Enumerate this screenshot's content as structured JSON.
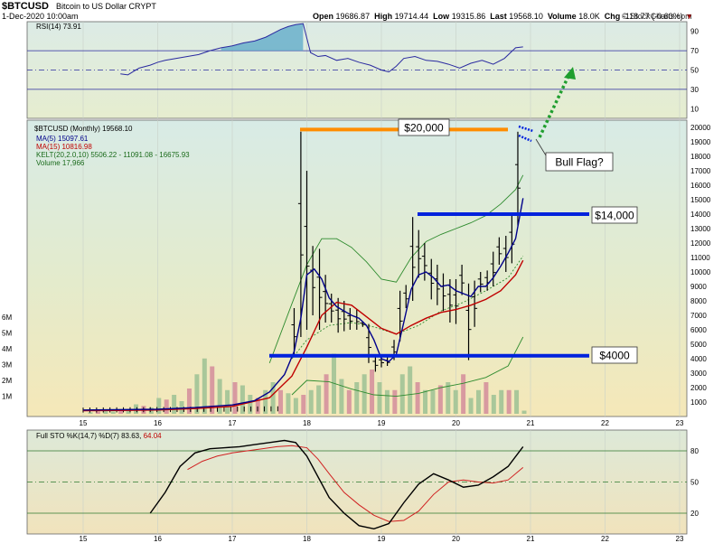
{
  "header": {
    "symbol": "$BTCUSD",
    "description": "Bitcoin to US Dollar  CRYPT",
    "date": "1-Dec-2020 10:00am",
    "watermark": "© StockCharts.com",
    "open_label": "Open",
    "open": "19686.87",
    "high_label": "High",
    "high": "19714.44",
    "low_label": "Low",
    "low": "19315.86",
    "last_label": "Last",
    "last": "19568.10",
    "volume_label": "Volume",
    "volume": "18.0K",
    "chg_label": "Chg",
    "chg": "-118.77 (-0.60%)"
  },
  "chart_data": [
    {
      "type": "line",
      "name": "rsi",
      "legend": "RSI(14) 73.91",
      "y_ticks": [
        90,
        70,
        50,
        30,
        10
      ],
      "ylim": [
        0,
        100
      ],
      "reference_lines": [
        70,
        50,
        30
      ],
      "x": [
        15.5,
        15.6,
        15.75,
        15.9,
        16.0,
        16.1,
        16.25,
        16.4,
        16.55,
        16.7,
        16.85,
        17.0,
        17.15,
        17.3,
        17.45,
        17.55,
        17.65,
        17.75,
        17.85,
        17.95,
        18.05,
        18.15,
        18.25,
        18.4,
        18.55,
        18.7,
        18.85,
        19.0,
        19.1,
        19.2,
        19.3,
        19.45,
        19.6,
        19.75,
        19.9,
        20.05,
        20.2,
        20.35,
        20.5,
        20.65,
        20.8,
        20.9
      ],
      "values": [
        46,
        45,
        52,
        55,
        58,
        60,
        62,
        64,
        66,
        70,
        73,
        75,
        78,
        80,
        84,
        88,
        92,
        95,
        97,
        98,
        68,
        64,
        65,
        60,
        62,
        58,
        55,
        50,
        48,
        54,
        62,
        64,
        60,
        59,
        56,
        52,
        57,
        60,
        56,
        62,
        73,
        74
      ]
    },
    {
      "type": "ohlc",
      "name": "price",
      "legend": [
        "$BTCUSD (Monthly) 19568.10",
        "MA(5) 15097.61",
        "MA(15) 10816.98",
        "KELT(20,2.0,10) 5506.22 - 11091.08 - 16675.93",
        "Volume 17,966"
      ],
      "y_ticks": [
        20000,
        19000,
        18000,
        17000,
        16000,
        15000,
        14000,
        13000,
        12000,
        11000,
        10000,
        9000,
        8000,
        7000,
        6000,
        5000,
        4000,
        3000,
        2000,
        1000
      ],
      "ylim": [
        0,
        20500
      ],
      "volume_ticks": [
        "6M",
        "5M",
        "4M",
        "3M",
        "2M",
        "1M"
      ],
      "x_ticks": [
        "15",
        "16",
        "17",
        "18",
        "19",
        "20",
        "21",
        "22",
        "23"
      ],
      "bars": [
        {
          "x": 17.83,
          "high": 7500,
          "low": 4200
        },
        {
          "x": 17.92,
          "high": 19700,
          "low": 5500
        },
        {
          "x": 18.0,
          "high": 17000,
          "low": 6000
        },
        {
          "x": 18.08,
          "high": 11800,
          "low": 7000
        },
        {
          "x": 18.17,
          "high": 11600,
          "low": 6000
        },
        {
          "x": 18.25,
          "high": 9800,
          "low": 6500
        },
        {
          "x": 18.33,
          "high": 8500,
          "low": 6500
        },
        {
          "x": 18.42,
          "high": 8200,
          "low": 5800
        },
        {
          "x": 18.5,
          "high": 8000,
          "low": 5900
        },
        {
          "x": 18.58,
          "high": 7500,
          "low": 6000
        },
        {
          "x": 18.67,
          "high": 7400,
          "low": 6000
        },
        {
          "x": 18.75,
          "high": 6600,
          "low": 6200
        },
        {
          "x": 18.83,
          "high": 6400,
          "low": 3700
        },
        {
          "x": 18.92,
          "high": 4200,
          "low": 3100
        },
        {
          "x": 19.0,
          "high": 4200,
          "low": 3400
        },
        {
          "x": 19.08,
          "high": 4100,
          "low": 3500
        },
        {
          "x": 19.17,
          "high": 5300,
          "low": 3900
        },
        {
          "x": 19.25,
          "high": 8700,
          "low": 5200
        },
        {
          "x": 19.33,
          "high": 9100,
          "low": 7500
        },
        {
          "x": 19.42,
          "high": 13800,
          "low": 8000
        },
        {
          "x": 19.5,
          "high": 12900,
          "low": 9600
        },
        {
          "x": 19.58,
          "high": 12000,
          "low": 9400
        },
        {
          "x": 19.67,
          "high": 10900,
          "low": 8100
        },
        {
          "x": 19.75,
          "high": 10500,
          "low": 7700
        },
        {
          "x": 19.83,
          "high": 9900,
          "low": 7300
        },
        {
          "x": 19.92,
          "high": 9500,
          "low": 6500
        },
        {
          "x": 20.0,
          "high": 9500,
          "low": 6400
        },
        {
          "x": 20.08,
          "high": 10500,
          "low": 8400
        },
        {
          "x": 20.17,
          "high": 9200,
          "low": 3900
        },
        {
          "x": 20.25,
          "high": 9400,
          "low": 6200
        },
        {
          "x": 20.33,
          "high": 10000,
          "low": 8600
        },
        {
          "x": 20.42,
          "high": 10100,
          "low": 8700
        },
        {
          "x": 20.5,
          "high": 11400,
          "low": 9000
        },
        {
          "x": 20.58,
          "high": 12400,
          "low": 10500
        },
        {
          "x": 20.67,
          "high": 12500,
          "low": 10000
        },
        {
          "x": 20.75,
          "high": 13900,
          "low": 10600
        },
        {
          "x": 20.83,
          "high": 19700,
          "low": 13200
        }
      ],
      "ma5": {
        "x": [
          15.0,
          16.0,
          16.5,
          17.0,
          17.3,
          17.5,
          17.7,
          17.83,
          17.92,
          18.0,
          18.1,
          18.2,
          18.3,
          18.4,
          18.5,
          18.6,
          18.7,
          18.8,
          18.9,
          19.0,
          19.1,
          19.2,
          19.3,
          19.4,
          19.5,
          19.6,
          19.7,
          19.8,
          19.9,
          20.0,
          20.1,
          20.2,
          20.3,
          20.4,
          20.5,
          20.6,
          20.7,
          20.8,
          20.9
        ],
        "values": [
          450,
          500,
          620,
          800,
          1100,
          1700,
          2900,
          4500,
          6800,
          9800,
          10200,
          9500,
          8200,
          7600,
          7300,
          7000,
          6800,
          6300,
          5300,
          4000,
          3800,
          4300,
          6500,
          8800,
          9800,
          10000,
          9600,
          9000,
          9100,
          8700,
          8500,
          8300,
          9000,
          9000,
          9600,
          10400,
          11300,
          12300,
          15100
        ]
      },
      "ma15": {
        "x": [
          15.0,
          16.0,
          16.5,
          17.0,
          17.5,
          17.8,
          18.0,
          18.2,
          18.4,
          18.6,
          18.8,
          19.0,
          19.2,
          19.4,
          19.6,
          19.8,
          20.0,
          20.2,
          20.4,
          20.6,
          20.8,
          20.9
        ],
        "values": [
          400,
          450,
          550,
          700,
          1300,
          2800,
          4800,
          7000,
          7900,
          7700,
          6900,
          6100,
          5700,
          6300,
          6800,
          7200,
          7400,
          7700,
          8100,
          8700,
          9800,
          10800
        ]
      },
      "kelt_upper": {
        "x": [
          17.5,
          17.8,
          18.0,
          18.2,
          18.4,
          18.6,
          18.8,
          19.0,
          19.2,
          19.4,
          19.6,
          19.8,
          20.0,
          20.2,
          20.4,
          20.6,
          20.8,
          20.9
        ],
        "values": [
          3700,
          7800,
          10500,
          12300,
          12300,
          11700,
          10700,
          9500,
          9300,
          11000,
          12100,
          12600,
          13000,
          13400,
          13900,
          14700,
          15700,
          16700
        ]
      },
      "kelt_middle": {
        "x": [
          17.8,
          18.0,
          18.3,
          18.6,
          18.9,
          19.2,
          19.5,
          19.8,
          20.1,
          20.4,
          20.7,
          20.9
        ],
        "values": [
          4000,
          5300,
          6300,
          6500,
          6200,
          5700,
          6300,
          7300,
          7900,
          8700,
          9600,
          11100
        ]
      },
      "kelt_lower": {
        "x": [
          17.8,
          18.0,
          18.3,
          18.6,
          18.9,
          19.2,
          19.5,
          19.8,
          20.1,
          20.4,
          20.7,
          20.9
        ],
        "values": [
          1500,
          2500,
          2400,
          1900,
          1500,
          1400,
          1600,
          2000,
          2300,
          2700,
          3500,
          5500
        ]
      },
      "volume_bars": [
        0.1,
        0.15,
        0.2,
        0.15,
        0.25,
        0.2,
        0.6,
        0.5,
        0.4,
        1.0,
        0.9,
        1.2,
        0.8,
        1.6,
        2.5,
        3.5,
        3.0,
        2.2,
        1.5,
        2.0,
        1.8,
        1.2,
        1.0,
        1.5,
        2.0,
        1.5,
        1.3,
        1.0,
        1.2,
        1.5,
        1.8,
        2.5,
        3.8,
        2.2,
        1.5,
        2.0,
        2.5,
        2.8,
        2.0,
        1.5,
        1.5,
        2.5,
        3.0,
        2.0,
        1.5,
        1.5,
        1.8,
        2.0,
        1.5,
        2.5,
        1.0,
        1.5,
        2.0,
        1.2,
        1.5,
        1.5,
        1.5,
        0.2
      ],
      "annotations": {
        "label_20000": "$20,000",
        "label_14000": "$14,000",
        "label_4000": "$4000",
        "label_bull_flag": "Bull Flag?",
        "level_20000": 19850,
        "level_14000": 14000,
        "level_4000": 4200
      }
    },
    {
      "type": "line",
      "name": "stochastic",
      "legend_prefix": "Full STO %K(14,7) %D(7) 83.63,",
      "legend_d": "64.04",
      "y_ticks": [
        80,
        50,
        20
      ],
      "ylim": [
        0,
        100
      ],
      "reference_lines": [
        80,
        50,
        20
      ],
      "k": {
        "x": [
          15.9,
          16.1,
          16.3,
          16.5,
          16.7,
          16.9,
          17.1,
          17.3,
          17.5,
          17.7,
          17.85,
          18.0,
          18.15,
          18.3,
          18.5,
          18.7,
          18.9,
          19.1,
          19.3,
          19.5,
          19.7,
          19.9,
          20.1,
          20.3,
          20.5,
          20.7,
          20.9
        ],
        "values": [
          20,
          40,
          65,
          78,
          82,
          83,
          84,
          86,
          88,
          90,
          88,
          75,
          55,
          35,
          20,
          8,
          5,
          10,
          30,
          48,
          58,
          52,
          45,
          47,
          55,
          65,
          84
        ]
      },
      "d": {
        "x": [
          16.4,
          16.6,
          16.8,
          17.0,
          17.2,
          17.4,
          17.6,
          17.8,
          18.0,
          18.15,
          18.3,
          18.5,
          18.7,
          18.9,
          19.1,
          19.3,
          19.5,
          19.7,
          19.9,
          20.1,
          20.3,
          20.5,
          20.7,
          20.9
        ],
        "values": [
          62,
          70,
          75,
          78,
          80,
          82,
          84,
          85,
          83,
          72,
          58,
          40,
          28,
          18,
          12,
          13,
          22,
          38,
          50,
          52,
          50,
          49,
          52,
          64
        ]
      }
    }
  ]
}
